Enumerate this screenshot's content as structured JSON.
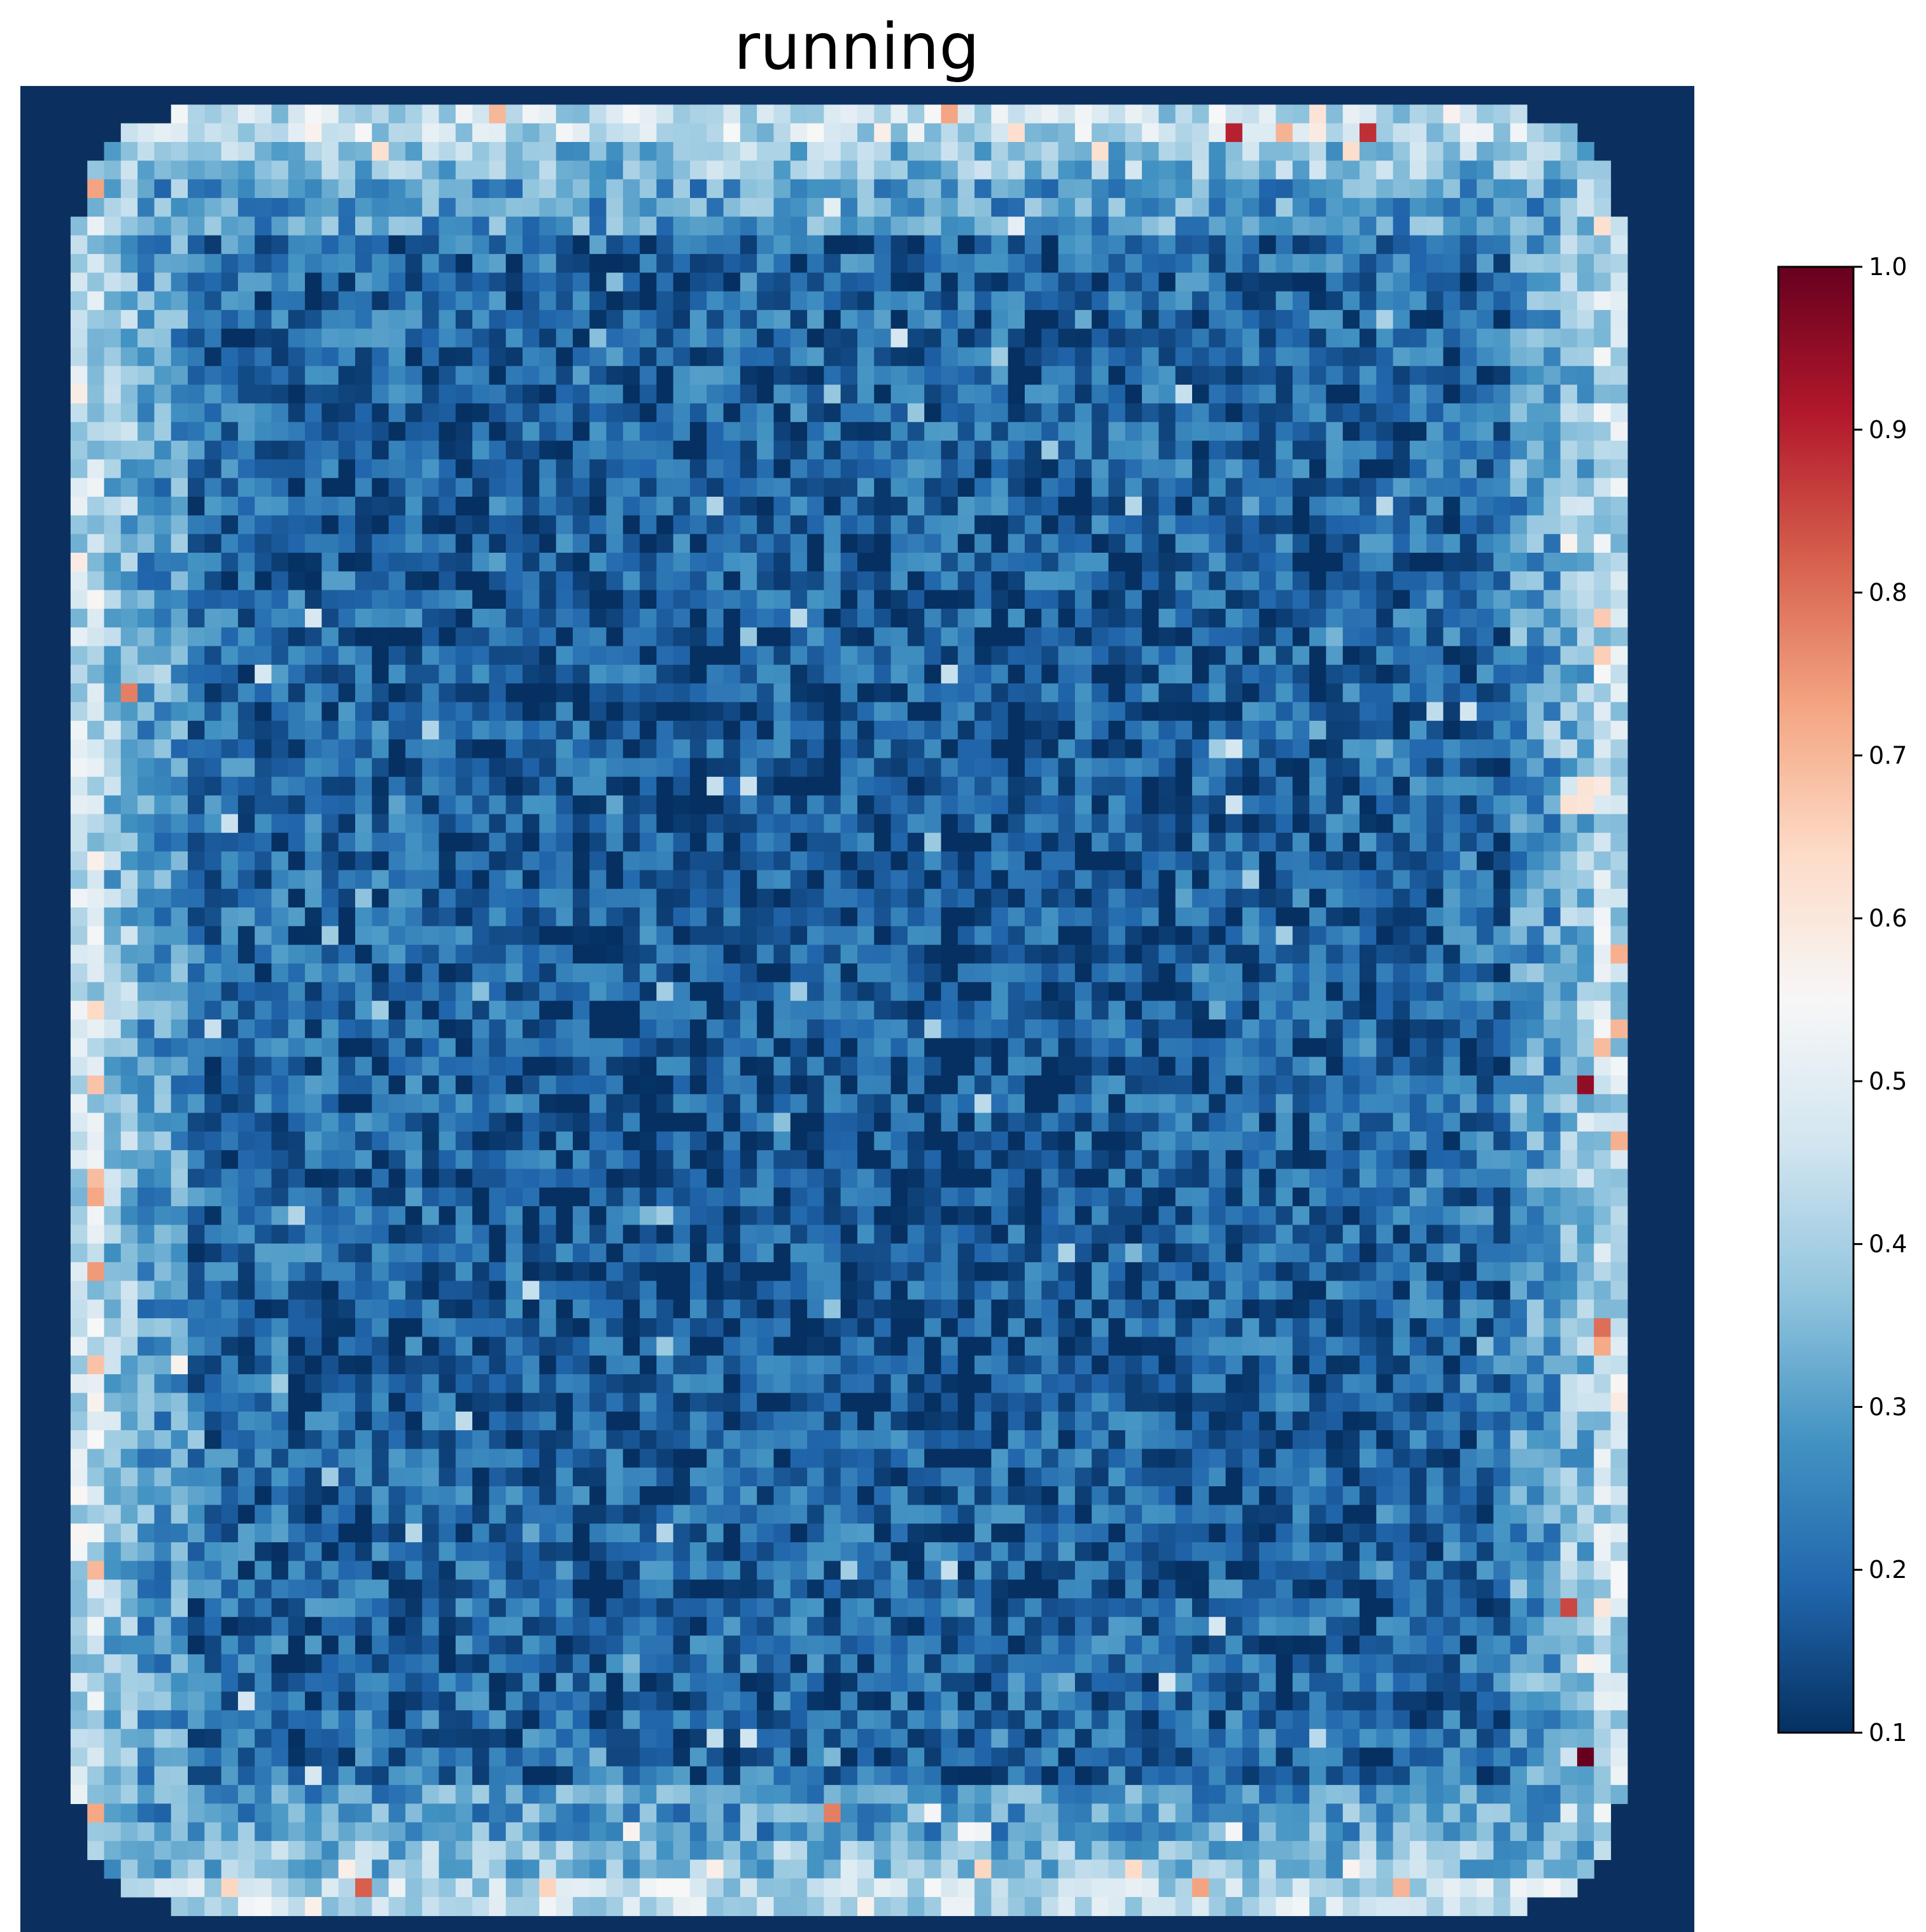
{
  "chart_data": {
    "type": "heatmap",
    "title": "running",
    "xlabel": "",
    "ylabel": "",
    "grid_size": [
      100,
      100
    ],
    "value_range": [
      0.1,
      1.0
    ],
    "colormap": "RdBu_r",
    "colormap_stops": [
      "#053061",
      "#2166ac",
      "#4393c3",
      "#92c5de",
      "#d1e5f0",
      "#f7f7f7",
      "#fddbc7",
      "#f4a582",
      "#d6604d",
      "#b2182b",
      "#67001f"
    ],
    "background_color": "#0b305f",
    "colorbar": {
      "ticks": [
        "0.1",
        "0.2",
        "0.3",
        "0.4",
        "0.5",
        "0.6",
        "0.7",
        "0.8",
        "0.9",
        "1.0"
      ],
      "tick_values": [
        0.1,
        0.2,
        0.3,
        0.4,
        0.5,
        0.6,
        0.7,
        0.8,
        0.9,
        1.0
      ]
    },
    "description_of_values": {
      "outside_region": 0.1,
      "interior_typical": [
        0.12,
        0.3
      ],
      "border_band_typical": [
        0.3,
        0.6
      ],
      "notable_hot_cells": [
        {
          "row": 2,
          "col": 72,
          "value": 0.9
        },
        {
          "row": 2,
          "col": 80,
          "value": 0.88
        },
        {
          "row": 53,
          "col": 93,
          "value": 0.95
        },
        {
          "row": 89,
          "col": 93,
          "value": 1.0
        },
        {
          "row": 81,
          "col": 92,
          "value": 0.85
        },
        {
          "row": 66,
          "col": 94,
          "value": 0.8
        },
        {
          "row": 96,
          "col": 20,
          "value": 0.82
        },
        {
          "row": 92,
          "col": 48,
          "value": 0.78
        },
        {
          "row": 32,
          "col": 6,
          "value": 0.78
        }
      ]
    }
  }
}
